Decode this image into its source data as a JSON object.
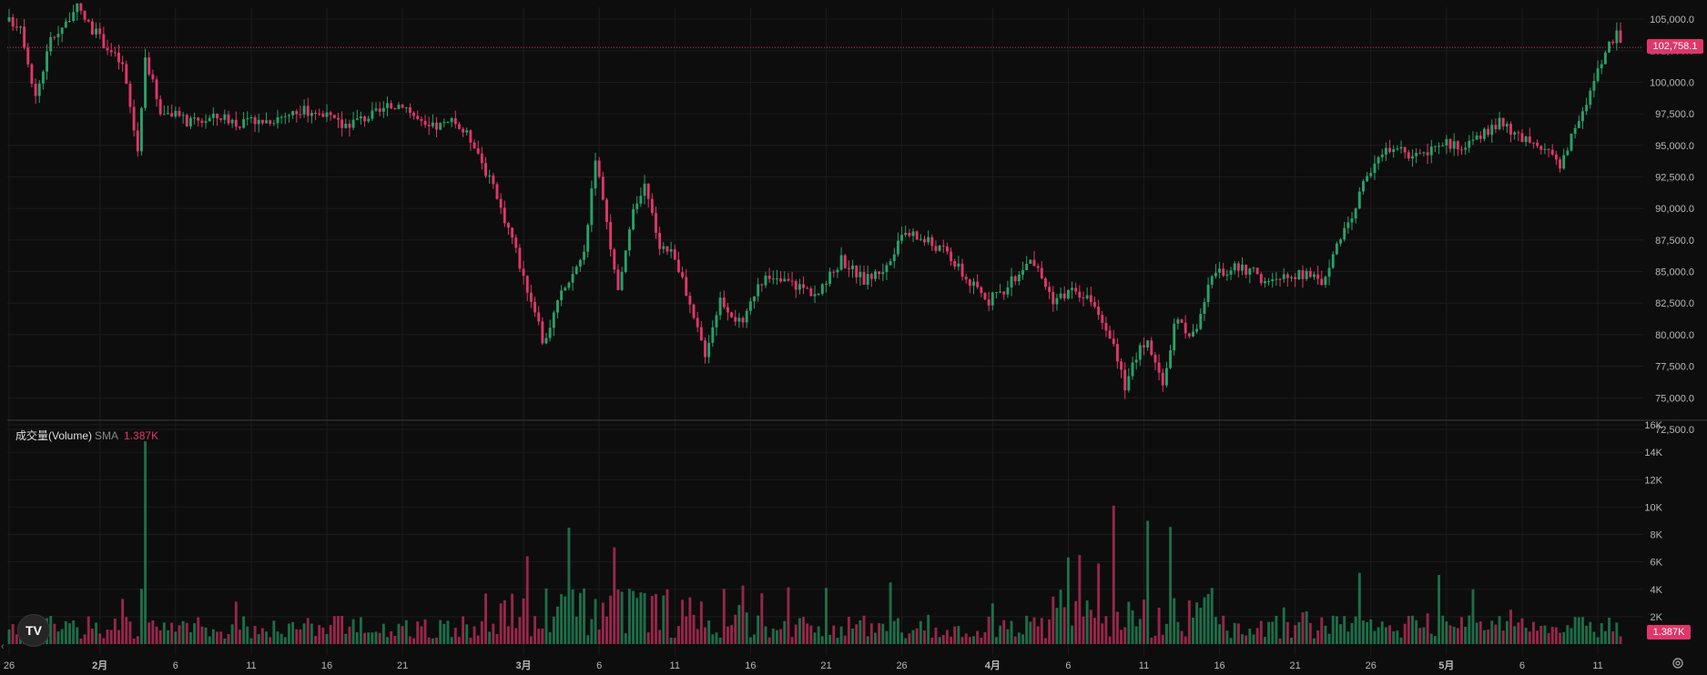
{
  "chart_data": {
    "type": "candlestick",
    "price_ticks": [
      "105,000.0",
      "102,500.0",
      "100,000.0",
      "97,500.0",
      "95,000.0",
      "92,500.0",
      "90,000.0",
      "87,500.0",
      "85,000.0",
      "82,500.0",
      "80,000.0",
      "77,500.0",
      "75,000.0",
      "72,500.0"
    ],
    "price_tick_values": [
      105000,
      102500,
      100000,
      97500,
      95000,
      92500,
      90000,
      87500,
      85000,
      82500,
      80000,
      77500,
      75000,
      72500
    ],
    "volume_ticks": [
      "16K",
      "14K",
      "12K",
      "10K",
      "8K",
      "6K",
      "4K",
      "2K"
    ],
    "volume_tick_values": [
      16000,
      14000,
      12000,
      10000,
      8000,
      6000,
      4000,
      2000
    ],
    "x_ticks": [
      {
        "label": "26",
        "bar": 0,
        "bold": false
      },
      {
        "label": "2月",
        "bar": 24,
        "bold": true
      },
      {
        "label": "6",
        "bar": 44,
        "bold": false
      },
      {
        "label": "11",
        "bar": 64,
        "bold": false
      },
      {
        "label": "16",
        "bar": 84,
        "bold": false
      },
      {
        "label": "21",
        "bar": 104,
        "bold": false
      },
      {
        "label": "3月",
        "bar": 136,
        "bold": true
      },
      {
        "label": "6",
        "bar": 156,
        "bold": false
      },
      {
        "label": "11",
        "bar": 176,
        "bold": false
      },
      {
        "label": "16",
        "bar": 196,
        "bold": false
      },
      {
        "label": "21",
        "bar": 216,
        "bold": false
      },
      {
        "label": "26",
        "bar": 236,
        "bold": false
      },
      {
        "label": "4月",
        "bar": 260,
        "bold": true
      },
      {
        "label": "6",
        "bar": 280,
        "bold": false
      },
      {
        "label": "11",
        "bar": 300,
        "bold": false
      },
      {
        "label": "16",
        "bar": 320,
        "bold": false
      },
      {
        "label": "21",
        "bar": 340,
        "bold": false
      },
      {
        "label": "26",
        "bar": 360,
        "bold": false
      },
      {
        "label": "5月",
        "bar": 380,
        "bold": true
      },
      {
        "label": "6",
        "bar": 400,
        "bold": false
      },
      {
        "label": "11",
        "bar": 420,
        "bold": false
      }
    ],
    "close_path_keypoints": [
      [
        0,
        104800
      ],
      [
        3,
        104600
      ],
      [
        7,
        98800
      ],
      [
        11,
        103400
      ],
      [
        18,
        105800
      ],
      [
        22,
        104200
      ],
      [
        30,
        101300
      ],
      [
        34,
        94600
      ],
      [
        36,
        102000
      ],
      [
        40,
        97800
      ],
      [
        48,
        96800
      ],
      [
        56,
        97300
      ],
      [
        62,
        96700
      ],
      [
        68,
        97000
      ],
      [
        74,
        97500
      ],
      [
        80,
        97800
      ],
      [
        88,
        96600
      ],
      [
        96,
        97400
      ],
      [
        104,
        98400
      ],
      [
        110,
        96300
      ],
      [
        118,
        96800
      ],
      [
        123,
        95200
      ],
      [
        128,
        91500
      ],
      [
        133,
        87700
      ],
      [
        136,
        84500
      ],
      [
        139,
        82000
      ],
      [
        141,
        79200
      ],
      [
        146,
        83200
      ],
      [
        152,
        86500
      ],
      [
        155,
        94200
      ],
      [
        158,
        88500
      ],
      [
        161,
        83200
      ],
      [
        165,
        89500
      ],
      [
        168,
        91700
      ],
      [
        172,
        87200
      ],
      [
        176,
        86300
      ],
      [
        180,
        82000
      ],
      [
        184,
        78600
      ],
      [
        188,
        82900
      ],
      [
        194,
        80600
      ],
      [
        198,
        84300
      ],
      [
        206,
        84200
      ],
      [
        214,
        83200
      ],
      [
        220,
        86000
      ],
      [
        226,
        84300
      ],
      [
        232,
        85400
      ],
      [
        237,
        88100
      ],
      [
        242,
        87500
      ],
      [
        248,
        86500
      ],
      [
        253,
        84400
      ],
      [
        259,
        82700
      ],
      [
        264,
        83800
      ],
      [
        270,
        86200
      ],
      [
        276,
        82800
      ],
      [
        282,
        83600
      ],
      [
        288,
        82000
      ],
      [
        292,
        79000
      ],
      [
        295,
        75700
      ],
      [
        298,
        78400
      ],
      [
        301,
        79800
      ],
      [
        305,
        75600
      ],
      [
        308,
        81000
      ],
      [
        313,
        80000
      ],
      [
        318,
        84500
      ],
      [
        323,
        85300
      ],
      [
        328,
        85100
      ],
      [
        333,
        84000
      ],
      [
        338,
        84700
      ],
      [
        343,
        84700
      ],
      [
        347,
        84200
      ],
      [
        350,
        86500
      ],
      [
        354,
        88500
      ],
      [
        358,
        92000
      ],
      [
        362,
        94500
      ],
      [
        368,
        94500
      ],
      [
        374,
        94000
      ],
      [
        379,
        95200
      ],
      [
        385,
        95000
      ],
      [
        389,
        95800
      ],
      [
        394,
        96800
      ],
      [
        398,
        95800
      ],
      [
        404,
        94800
      ],
      [
        410,
        93600
      ],
      [
        415,
        97000
      ],
      [
        418,
        99200
      ],
      [
        422,
        102200
      ],
      [
        425,
        104000
      ],
      [
        426,
        102758.1
      ]
    ],
    "last_price": "102,758.1",
    "last_price_value": 102758.1,
    "volume_label": "成交量(Volume)",
    "volume_sma_label": "SMA",
    "volume_last": "1.387K",
    "volume_last_tag": "1.387K",
    "colors": {
      "up": "#26a269",
      "down": "#e0366a",
      "grid": "#1c1c1c",
      "axis_text": "#b8b8b8",
      "background": "#0d0d0d",
      "last_price_line": "#e0366a"
    },
    "notable_volume_spikes": [
      {
        "bar": 36,
        "volume": 14800
      },
      {
        "bar": 292,
        "volume": 10100
      },
      {
        "bar": 301,
        "volume": 9000
      },
      {
        "bar": 148,
        "volume": 8500
      },
      {
        "bar": 283,
        "volume": 6500
      },
      {
        "bar": 357,
        "volume": 5200
      }
    ],
    "bar_count": 427,
    "logo_text": "TV"
  }
}
